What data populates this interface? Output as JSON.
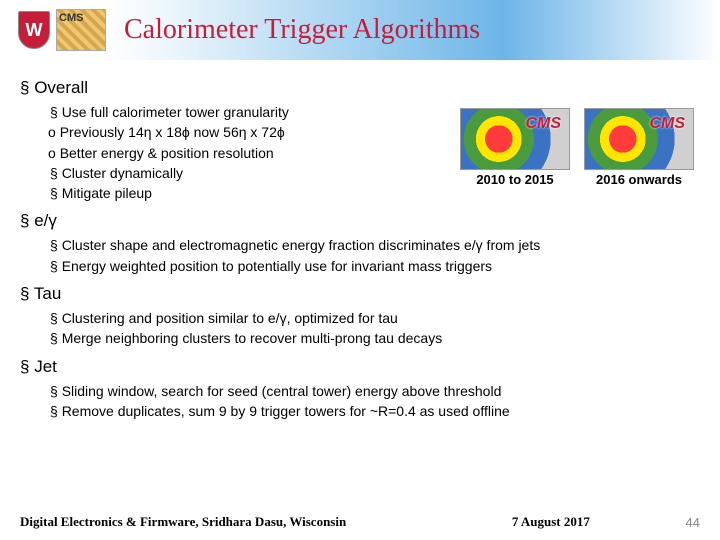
{
  "header": {
    "shield_letter": "W",
    "logo2_text": "CMS",
    "title": "Calorimeter Trigger Algorithms",
    "title_color": "#c41e3a"
  },
  "sections": {
    "overall": {
      "heading": "Overall",
      "items": [
        "Use full calorimeter tower granularity",
        "Cluster dynamically",
        "Mitigate pileup"
      ],
      "sub_items": [
        "Previously 14η x 18ϕ now 56η x 72ϕ",
        "Better energy & position resolution"
      ]
    },
    "egamma": {
      "heading": "e/γ",
      "items": [
        "Cluster shape and electromagnetic energy fraction discriminates e/γ from jets",
        "Energy weighted position to potentially use for invariant mass triggers"
      ]
    },
    "tau": {
      "heading": "Tau",
      "items": [
        "Clustering and position similar to e/γ, optimized for tau",
        "Merge neighboring clusters to recover multi-prong tau decays"
      ]
    },
    "jet": {
      "heading": "Jet",
      "items": [
        "Sliding window, search for seed (central tower) energy above threshold",
        "Remove duplicates, sum 9 by 9 trigger towers for ~R=0.4 as used offline"
      ]
    }
  },
  "cms_images": {
    "label_text": "CMS",
    "caption_left": "2010 to 2015",
    "caption_right": "2016 onwards",
    "colors": {
      "ring1": "#ff3b3b",
      "ring2": "#ffe600",
      "ring3": "#4a9b3e",
      "ring4": "#3b72c4",
      "bg": "#d0d0d0"
    }
  },
  "footer": {
    "left": "Digital Electronics & Firmware, Sridhara Dasu, Wisconsin",
    "mid": "7 August 2017",
    "page_num": "44"
  }
}
